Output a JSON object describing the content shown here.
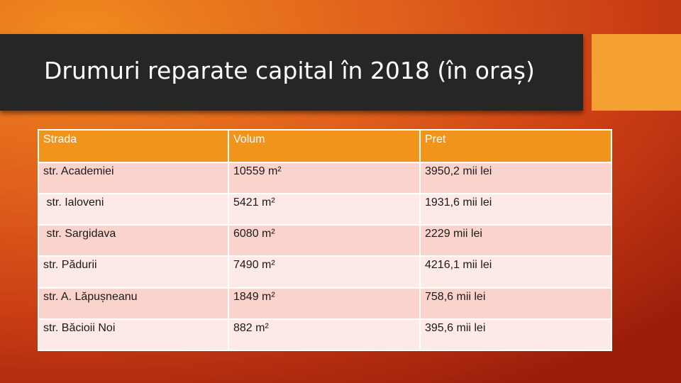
{
  "slide": {
    "title": "Drumuri reparate capital în 2018 (în oraș)"
  },
  "table": {
    "headers": [
      "Strada",
      "Volum",
      "Pret"
    ],
    "rows": [
      [
        "str. Academiei",
        "10559 m²",
        "3950,2 mii lei"
      ],
      [
        " str. Ialoveni",
        "5421 m²",
        "1931,6 mii lei"
      ],
      [
        " str. Sargidava",
        "6080 m²",
        "2229 mii lei"
      ],
      [
        "str. Pădurii",
        "7490 m²",
        "4216,1 mii lei"
      ],
      [
        "str. A. Lăpușneanu",
        "1849 m²",
        "758,6 mii lei"
      ],
      [
        "str. Băcioii Noi",
        "882 m²",
        "395,6 mii lei"
      ]
    ]
  },
  "colors": {
    "title_bar": "#262626",
    "accent": "#f4a032",
    "header_fill": "#f0941c",
    "row_odd": "#fbd3cd",
    "row_even": "#fde9e5"
  }
}
